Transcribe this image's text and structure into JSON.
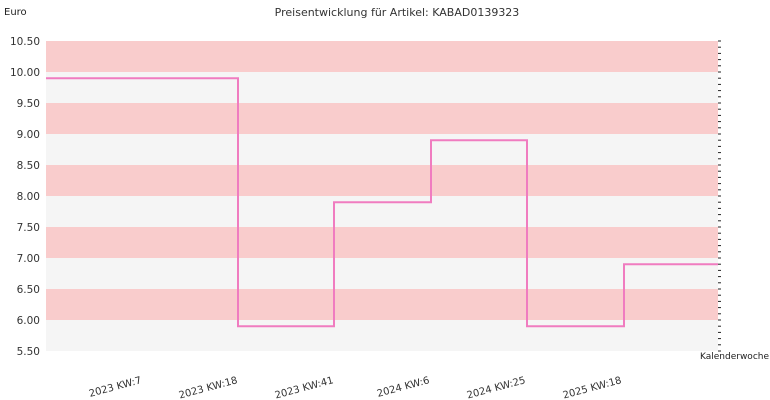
{
  "chart_data": {
    "type": "line",
    "title": "Preisentwicklung für Artikel: KABAD0139323",
    "ylabel": "Euro",
    "xlabel": "Kalenderwoche",
    "ylim": [
      5.5,
      10.5
    ],
    "yticks": [
      "10.50",
      "10.00",
      "9.50",
      "9.00",
      "8.50",
      "8.00",
      "7.50",
      "7.00",
      "6.50",
      "6.00",
      "5.50"
    ],
    "categories": [
      "2023 KW:7",
      "2023 KW:18",
      "2023 KW:41",
      "2024 KW:6",
      "2024 KW:25",
      "2025 KW:18"
    ],
    "step": "post",
    "values": [
      9.9,
      5.9,
      7.9,
      8.9,
      5.9,
      6.9
    ],
    "line_color": "#f07cc0",
    "band_colors": [
      "#f9cccc",
      "#f5f5f5"
    ],
    "grid": false,
    "legend": "none"
  }
}
